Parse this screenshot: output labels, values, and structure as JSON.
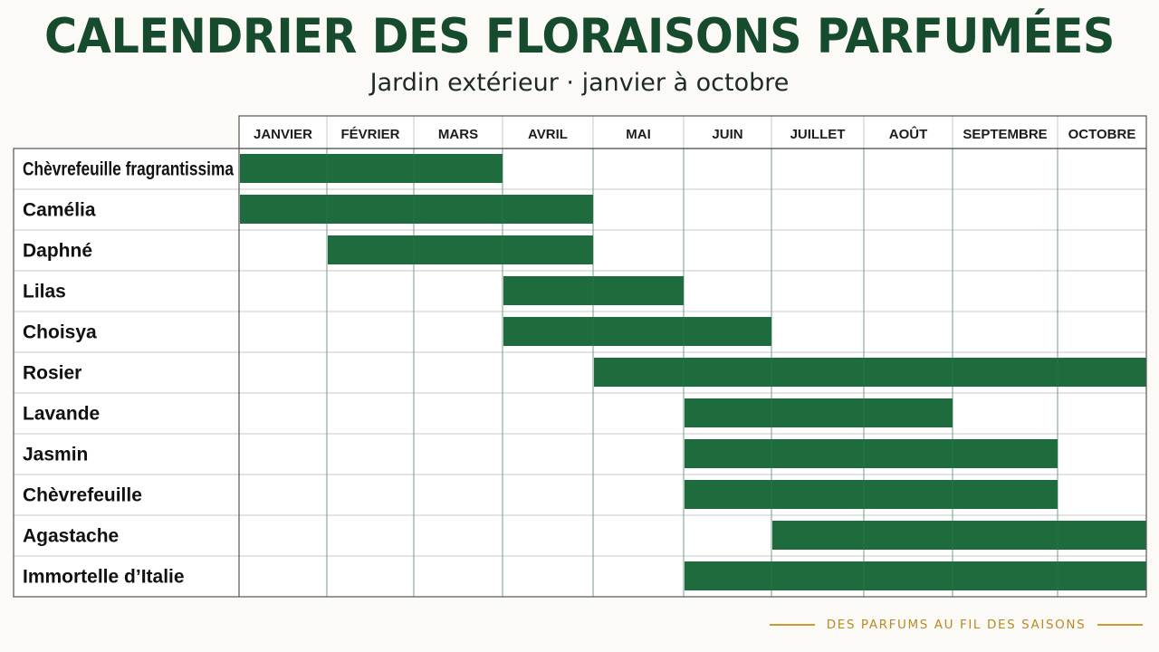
{
  "title": "CALENDRIER DES FLORAISONS PARFUMÉES",
  "subtitle": "Jardin extérieur · janvier à octobre",
  "footer": "DES PARFUMS AU FIL DES SAISONS",
  "colors": {
    "bar": "#1e6b3d",
    "title": "#174b2e",
    "grid": "#c9c9c9",
    "frame": "#555555",
    "footer": "#c99a2e"
  },
  "chart_data": {
    "type": "gantt",
    "months": [
      "JANVIER",
      "FÉVRIER",
      "MARS",
      "AVRIL",
      "MAI",
      "JUIN",
      "JUILLET",
      "AOÛT",
      "SEPTEMBRE",
      "OCTOBRE"
    ],
    "rows": [
      {
        "label": "Chèvrefeuille fragrantissima",
        "start": "JANVIER",
        "end": "MARS"
      },
      {
        "label": "Camélia",
        "start": "JANVIER",
        "end": "AVRIL"
      },
      {
        "label": "Daphné",
        "start": "FÉVRIER",
        "end": "AVRIL"
      },
      {
        "label": "Lilas",
        "start": "AVRIL",
        "end": "MAI"
      },
      {
        "label": "Choisya",
        "start": "AVRIL",
        "end": "JUIN"
      },
      {
        "label": "Rosier",
        "start": "MAI",
        "end": "OCTOBRE"
      },
      {
        "label": "Lavande",
        "start": "JUIN",
        "end": "AOÛT"
      },
      {
        "label": "Jasmin",
        "start": "JUIN",
        "end": "SEPTEMBRE"
      },
      {
        "label": "Chèvrefeuille",
        "start": "JUIN",
        "end": "SEPTEMBRE"
      },
      {
        "label": "Agastache",
        "start": "JUILLET",
        "end": "OCTOBRE"
      },
      {
        "label": "Immortelle d’Italie",
        "start": "JUIN",
        "end": "OCTOBRE"
      }
    ]
  }
}
